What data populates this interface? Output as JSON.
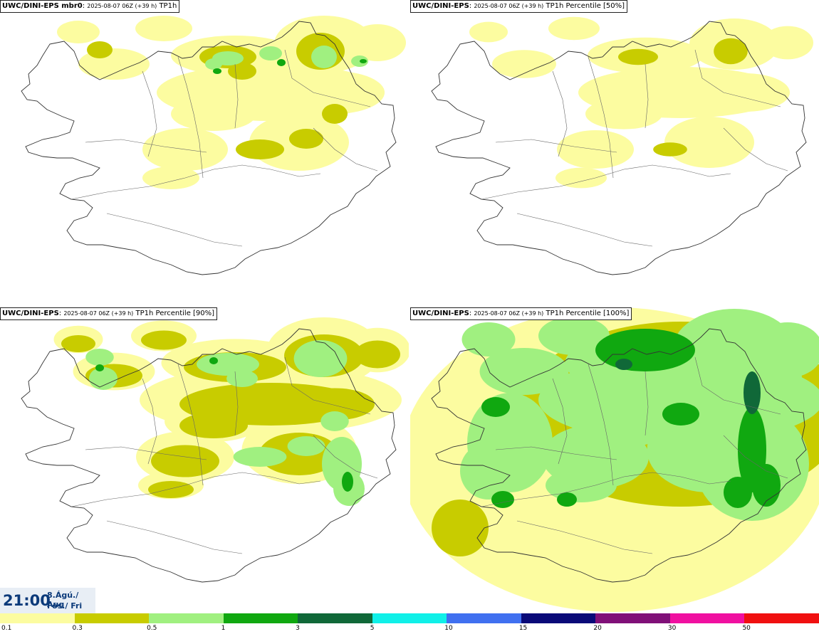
{
  "panels": [
    {
      "model": "UWC/DINI-EPS",
      "member": " mbr0",
      "run": "2025-08-07 06Z (+39 h)",
      "product": "TP1h",
      "intensity": 1
    },
    {
      "model": "UWC/DINI-EPS",
      "member": "",
      "run": "2025-08-07 06Z (+39 h)",
      "product": "TP1h Percentile [50%]",
      "intensity": 0
    },
    {
      "model": "UWC/DINI-EPS",
      "member": "",
      "run": "2025-08-07 06Z (+39 h)",
      "product": "TP1h Percentile [90%]",
      "intensity": 2
    },
    {
      "model": "UWC/DINI-EPS",
      "member": "",
      "run": "2025-08-07 06Z (+39 h)",
      "product": "TP1h Percentile [100%]",
      "intensity": 3
    }
  ],
  "valid_time": {
    "hour": "21:00",
    "date": "8.Ágú./ Aug",
    "weekday": "Fös./ Fri"
  },
  "legend": {
    "colors": [
      "#fcfca0",
      "#c8cc00",
      "#a0f080",
      "#10a810",
      "#106838",
      "#10f0e8",
      "#4070f0",
      "#0a0a78",
      "#801078",
      "#f010a0",
      "#f01010"
    ],
    "labels": [
      "0.1",
      "0.3",
      "0.5",
      "1",
      "3",
      "5",
      "10",
      "15",
      "20",
      "30",
      "50"
    ]
  },
  "level_colors": {
    "l1": "#fcfca0",
    "l2": "#c8cc00",
    "l3": "#a0f080",
    "l4": "#10a810",
    "l5": "#106838"
  }
}
